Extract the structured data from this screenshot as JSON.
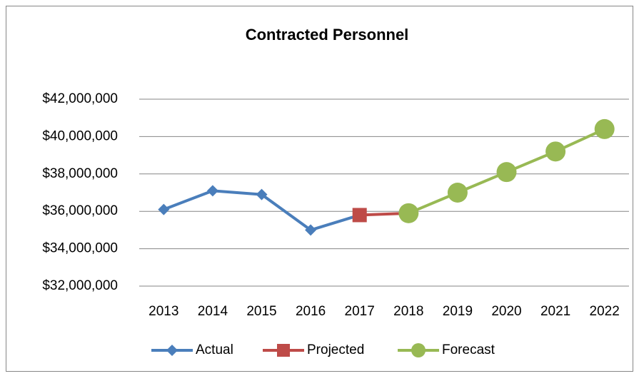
{
  "chart_data": {
    "type": "line",
    "title": "Contracted Personnel",
    "categories": [
      "2013",
      "2014",
      "2015",
      "2016",
      "2017",
      "2018",
      "2019",
      "2020",
      "2021",
      "2022"
    ],
    "series": [
      {
        "name": "Actual",
        "color": "#4a7ebb",
        "marker": "diamond",
        "values": [
          36100000,
          37100000,
          36900000,
          35000000,
          35800000,
          null,
          null,
          null,
          null,
          null
        ]
      },
      {
        "name": "Projected",
        "color": "#be4b48",
        "marker": "square",
        "values": [
          null,
          null,
          null,
          null,
          35800000,
          35900000,
          null,
          null,
          null,
          null
        ]
      },
      {
        "name": "Forecast",
        "color": "#98b954",
        "marker": "circle",
        "values": [
          null,
          null,
          null,
          null,
          null,
          35900000,
          37000000,
          38100000,
          39200000,
          40400000
        ]
      }
    ],
    "ylim": [
      32000000,
      42000000
    ],
    "yticks": [
      {
        "value": 32000000,
        "label": "$32,000,000"
      },
      {
        "value": 34000000,
        "label": "$34,000,000"
      },
      {
        "value": 36000000,
        "label": "$36,000,000"
      },
      {
        "value": 38000000,
        "label": "$38,000,000"
      },
      {
        "value": 40000000,
        "label": "$40,000,000"
      },
      {
        "value": 42000000,
        "label": "$42,000,000"
      }
    ],
    "grid": true,
    "legend": "bottom"
  }
}
